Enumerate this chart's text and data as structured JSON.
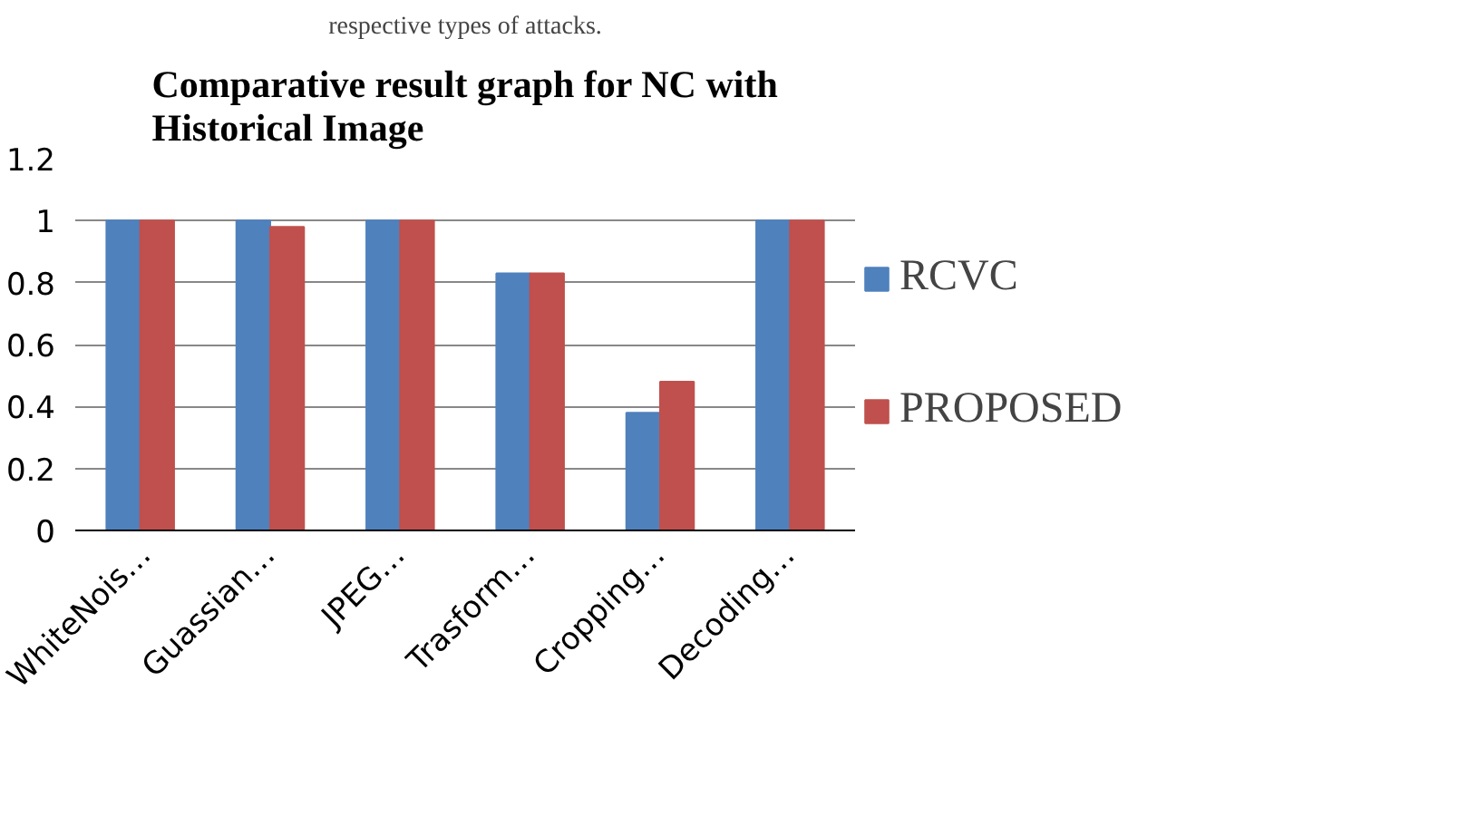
{
  "chart_data": {
    "type": "bar",
    "title": "Comparative result graph for NC with\nHistorical Image",
    "annotations": [
      "respective types of attacks."
    ],
    "categories": [
      "WhiteNois…",
      "Guassian…",
      "JPEG…",
      "Trasform…",
      "Cropping…",
      "Decoding…"
    ],
    "series": [
      {
        "name": "RCVC",
        "color": "#4f81bd",
        "values": [
          1,
          1,
          1,
          0.83,
          0.38,
          1
        ]
      },
      {
        "name": "PROPOSED",
        "color": "#c0504d",
        "values": [
          1,
          0.98,
          1,
          0.83,
          0.48,
          1
        ]
      }
    ],
    "ylim": [
      0,
      1.2
    ],
    "yticks": [
      0,
      0.2,
      0.4,
      0.6,
      0.8,
      1,
      1.2
    ],
    "grid": "y",
    "legend": "right"
  }
}
